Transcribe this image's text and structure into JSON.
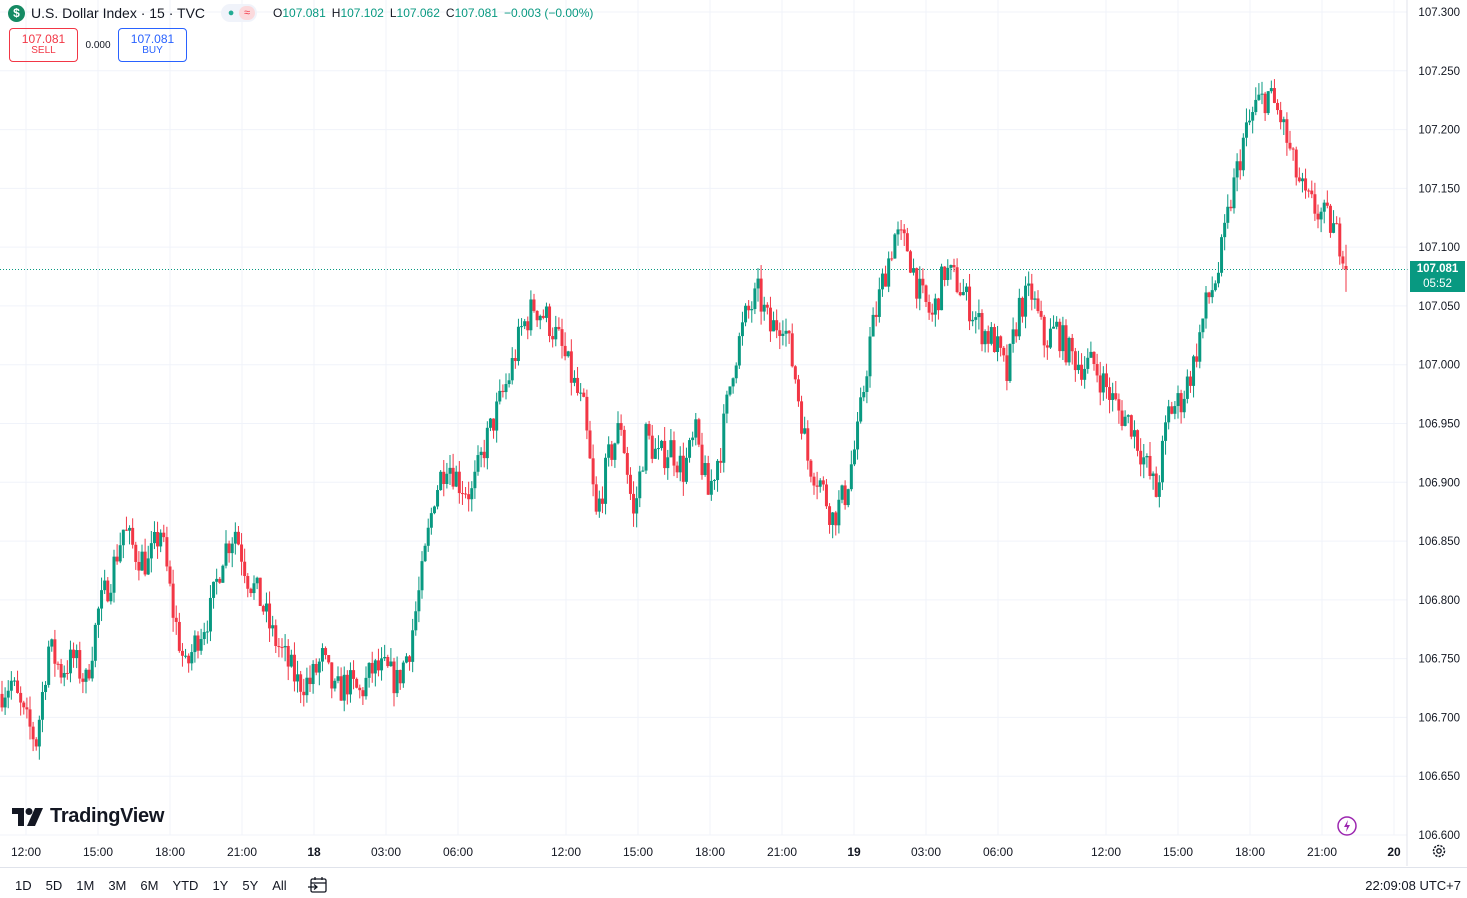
{
  "header": {
    "symbol_icon": "$",
    "title": "U.S. Dollar Index · 15 · TVC",
    "status_market_icon": "market-open-dot-icon",
    "status_data_icon": "delayed-data-wave-icon",
    "ohlc": {
      "o_label": "O",
      "o_value": "107.081",
      "h_label": "H",
      "h_value": "107.102",
      "l_label": "L",
      "l_value": "107.062",
      "c_label": "C",
      "c_value": "107.081",
      "change": "−0.003 (−0.00%)"
    }
  },
  "trade": {
    "sell_price": "107.081",
    "sell_label": "SELL",
    "spread": "0.000",
    "buy_price": "107.081",
    "buy_label": "BUY"
  },
  "logo_text": "TradingView",
  "price_tag": {
    "price": "107.081",
    "countdown": "05:52"
  },
  "range_buttons": [
    "1D",
    "5D",
    "1M",
    "3M",
    "6M",
    "YTD",
    "1Y",
    "5Y",
    "All"
  ],
  "clock": "22:09:08 UTC+7",
  "colors": {
    "up": "#089981",
    "down": "#f23645",
    "grid": "#f0f3fa",
    "text": "#131722",
    "last_price_line": "#089981"
  },
  "chart_data": {
    "type": "candlestick",
    "title": "U.S. Dollar Index · 15 · TVC",
    "ylim": [
      106.6,
      107.3
    ],
    "y_ticks": [
      "107.300",
      "107.250",
      "107.200",
      "107.150",
      "107.100",
      "107.050",
      "107.000",
      "106.950",
      "106.900",
      "106.850",
      "106.800",
      "106.750",
      "106.700",
      "106.650",
      "106.600"
    ],
    "x_tick_labels": [
      {
        "label": "12:00",
        "bold": false
      },
      {
        "label": "15:00",
        "bold": false
      },
      {
        "label": "18:00",
        "bold": false
      },
      {
        "label": "21:00",
        "bold": false
      },
      {
        "label": "18",
        "bold": true
      },
      {
        "label": "03:00",
        "bold": false
      },
      {
        "label": "06:00",
        "bold": false
      },
      {
        "label": "12:00",
        "bold": false
      },
      {
        "label": "15:00",
        "bold": false
      },
      {
        "label": "18:00",
        "bold": false
      },
      {
        "label": "21:00",
        "bold": false
      },
      {
        "label": "19",
        "bold": true
      },
      {
        "label": "03:00",
        "bold": false
      },
      {
        "label": "06:00",
        "bold": false
      },
      {
        "label": "12:00",
        "bold": false
      },
      {
        "label": "15:00",
        "bold": false
      },
      {
        "label": "18:00",
        "bold": false
      },
      {
        "label": "21:00",
        "bold": false
      },
      {
        "label": "20",
        "bold": true
      }
    ],
    "last_price": 107.081,
    "close_path": [
      106.72,
      106.73,
      106.7,
      106.68,
      106.76,
      106.74,
      106.75,
      106.73,
      106.79,
      106.82,
      106.86,
      106.84,
      106.83,
      106.86,
      106.79,
      106.74,
      106.77,
      106.79,
      106.84,
      106.86,
      106.82,
      106.8,
      106.77,
      106.75,
      106.73,
      106.73,
      106.75,
      106.72,
      106.73,
      106.72,
      106.74,
      106.74,
      106.73,
      106.76,
      106.82,
      106.89,
      106.92,
      106.9,
      106.89,
      106.93,
      106.96,
      106.99,
      107.03,
      107.05,
      107.04,
      107.02,
      106.99,
      106.96,
      106.87,
      106.92,
      106.95,
      106.87,
      106.94,
      106.92,
      106.93,
      106.91,
      106.94,
      106.89,
      106.93,
      107.0,
      107.04,
      107.06,
      107.03,
      107.04,
      106.99,
      106.92,
      106.9,
      106.87,
      106.89,
      106.94,
      107.02,
      107.07,
      107.11,
      107.1,
      107.06,
      107.04,
      107.08,
      107.07,
      107.05,
      107.03,
      107.02,
      106.99,
      107.05,
      107.06,
      107.02,
      107.03,
      107.01,
      107.0,
      107.0,
      106.98,
      106.96,
      106.95,
      106.92,
      106.89,
      106.96,
      106.97,
      107.0,
      107.05,
      107.08,
      107.14,
      107.19,
      107.22,
      107.23,
      107.21,
      107.17,
      107.14,
      107.13,
      107.12,
      107.1
    ]
  }
}
